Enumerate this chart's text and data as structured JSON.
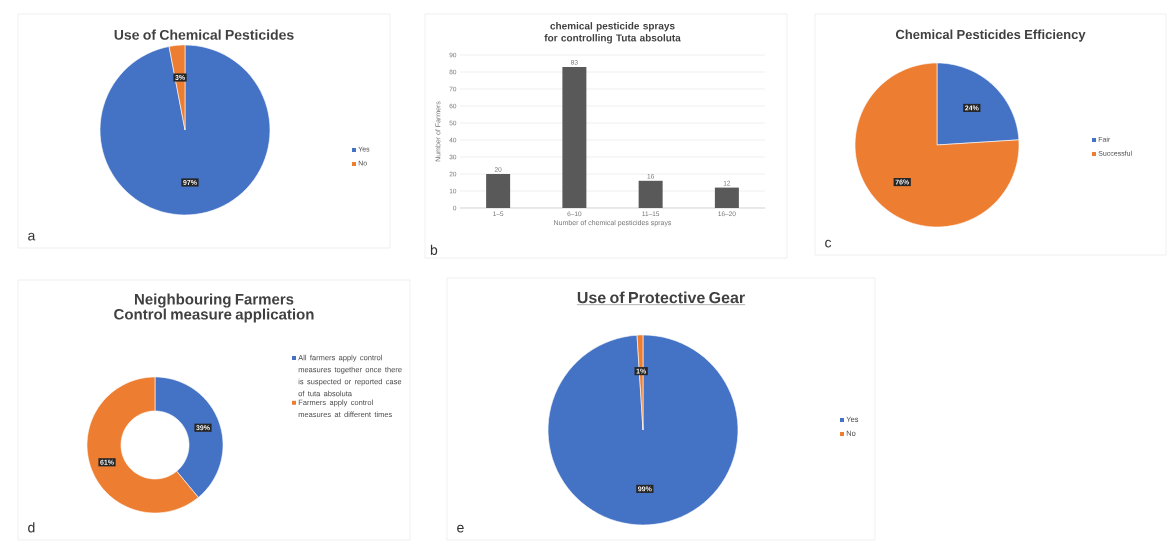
{
  "chart_data": [
    {
      "type": "pie",
      "title": "Use of Chemical Pesticides",
      "categories": [
        "Yes",
        "No"
      ],
      "values": [
        97,
        3
      ],
      "colors": [
        "#4472c4",
        "#ed7d31"
      ],
      "value_labels": [
        "97%",
        "3%"
      ],
      "legend": "right",
      "annotations": [
        "a"
      ]
    },
    {
      "type": "bar",
      "title": "chemical pesticide sprays  for controlling Tuta absoluta",
      "xlabel": "Number of chemical pesticides sprays",
      "ylabel": "Number of Farmers",
      "categories": [
        "1–5",
        "6–10",
        "11–15",
        "16–20"
      ],
      "values": [
        20,
        83,
        16,
        12
      ],
      "color": "#595959",
      "ylim": [
        0,
        90
      ],
      "yticks": [
        0,
        10,
        20,
        30,
        40,
        50,
        60,
        70,
        80,
        90
      ],
      "grid": "y",
      "data_labels": true,
      "annotations": [
        "b"
      ]
    },
    {
      "type": "pie",
      "title": "Chemical Pesticides Efficiency",
      "categories": [
        "Fair",
        "Successful"
      ],
      "values": [
        24,
        76
      ],
      "colors": [
        "#4472c4",
        "#ed7d31"
      ],
      "value_labels": [
        "24%",
        "76%"
      ],
      "legend": "right",
      "annotations": [
        "c"
      ]
    },
    {
      "type": "donut",
      "title": "Neighbouring Farmers Control measure application",
      "categories": [
        "All farmers apply control measures together once there is suspected or reported case of tuta absoluta",
        "Farmers apply control measures at different times"
      ],
      "values": [
        39,
        61
      ],
      "colors": [
        "#4472c4",
        "#ed7d31"
      ],
      "value_labels": [
        "39%",
        "61%"
      ],
      "legend": "right",
      "annotations": [
        "d"
      ]
    },
    {
      "type": "pie",
      "title": "Use of Protective Gear",
      "categories": [
        "Yes",
        "No"
      ],
      "values": [
        99,
        1
      ],
      "colors": [
        "#4472c4",
        "#ed7d31"
      ],
      "value_labels": [
        "99%",
        "1%"
      ],
      "legend": "right",
      "annotations": [
        "e"
      ]
    }
  ]
}
